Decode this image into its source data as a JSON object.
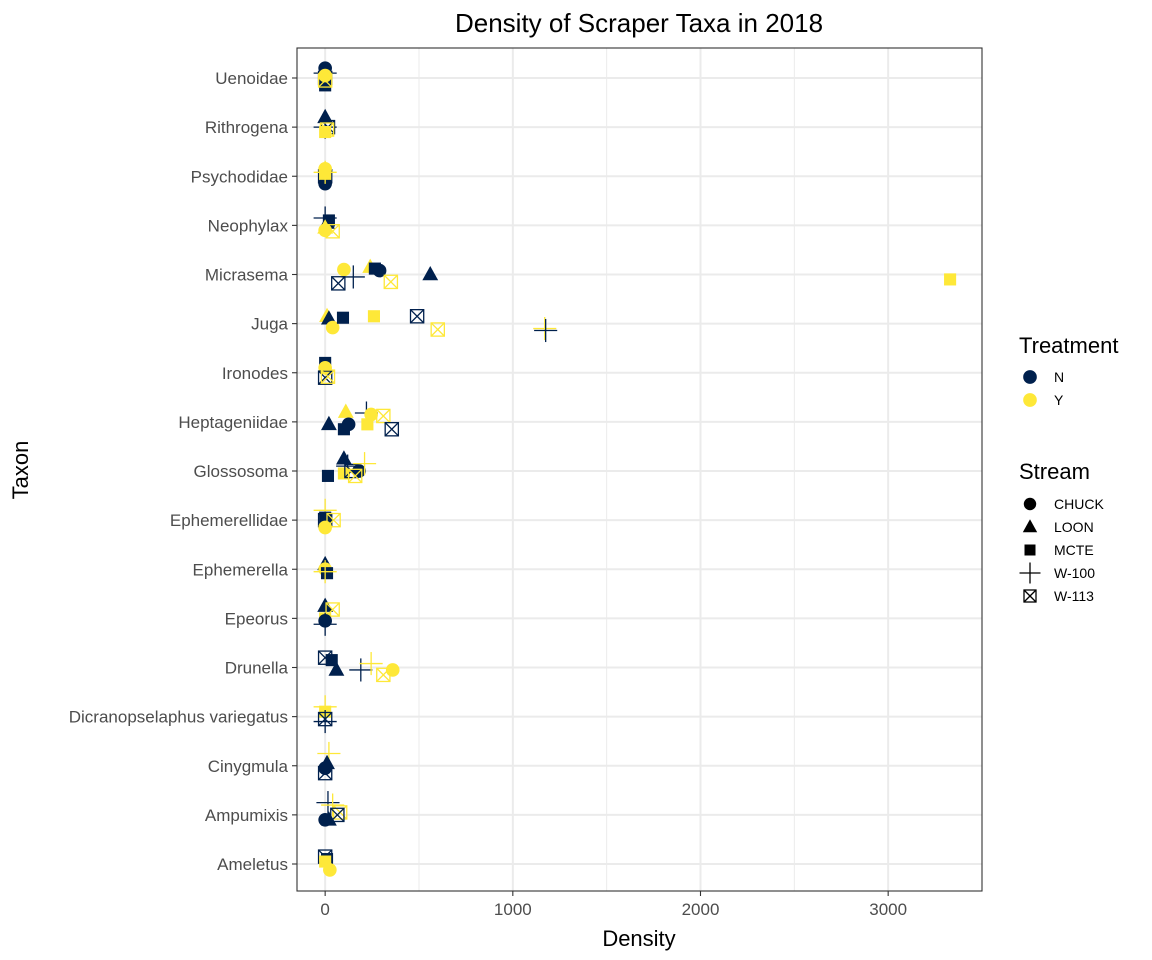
{
  "chart_data": {
    "type": "scatter",
    "title": "Density of Scraper Taxa in 2018",
    "xlabel": "Density",
    "ylabel": "Taxon",
    "xlim": [
      -150,
      3500
    ],
    "xticks": [
      0,
      1000,
      2000,
      3000
    ],
    "xtick_labels": [
      "0",
      "1000",
      "2000",
      "3000"
    ],
    "categories": [
      "Ameletus",
      "Ampumixis",
      "Cinygmula",
      "Dicranopselaphus variegatus",
      "Drunella",
      "Epeorus",
      "Ephemerella",
      "Ephemerellidae",
      "Glossosoma",
      "Heptageniidae",
      "Ironodes",
      "Juga",
      "Micrasema",
      "Neophylax",
      "Psychodidae",
      "Rithrogena",
      "Uenoidae"
    ],
    "grid": true,
    "legend_position": "right",
    "colors": {
      "N": "#00204d",
      "Y": "#fee838",
      "cross_over_fill": "#ffffff"
    },
    "legends": [
      {
        "title": "Treatment",
        "kind": "color",
        "entries": [
          {
            "label": "N",
            "color": "#00204d"
          },
          {
            "label": "Y",
            "color": "#fee838"
          }
        ]
      },
      {
        "title": "Stream",
        "kind": "shape",
        "entries": [
          {
            "label": "CHUCK",
            "shape": "circle"
          },
          {
            "label": "LOON",
            "shape": "triangle"
          },
          {
            "label": "MCTE",
            "shape": "square"
          },
          {
            "label": "W-100",
            "shape": "plus"
          },
          {
            "label": "W-113",
            "shape": "boxcross"
          }
        ]
      }
    ],
    "points": [
      {
        "taxon": "Uenoidae",
        "x": 0,
        "jitter": 0.2,
        "stream": "CHUCK",
        "treatment": "N"
      },
      {
        "taxon": "Uenoidae",
        "x": 0,
        "jitter": -0.15,
        "stream": "MCTE",
        "treatment": "N"
      },
      {
        "taxon": "Uenoidae",
        "x": 0,
        "jitter": 0.1,
        "stream": "W-100",
        "treatment": "N"
      },
      {
        "taxon": "Uenoidae",
        "x": 0,
        "jitter": 0.0,
        "stream": "W-113",
        "treatment": "N"
      },
      {
        "taxon": "Uenoidae",
        "x": 0,
        "jitter": 0.05,
        "stream": "CHUCK",
        "treatment": "Y"
      },
      {
        "taxon": "Uenoidae",
        "x": 0,
        "jitter": -0.05,
        "stream": "W-113",
        "treatment": "Y"
      },
      {
        "taxon": "Rithrogena",
        "x": 0,
        "jitter": 0.2,
        "stream": "LOON",
        "treatment": "N"
      },
      {
        "taxon": "Rithrogena",
        "x": 0,
        "jitter": 0.0,
        "stream": "W-100",
        "treatment": "N"
      },
      {
        "taxon": "Rithrogena",
        "x": 15,
        "jitter": 0.0,
        "stream": "W-113",
        "treatment": "N"
      },
      {
        "taxon": "Rithrogena",
        "x": 0,
        "jitter": -0.1,
        "stream": "MCTE",
        "treatment": "Y"
      },
      {
        "taxon": "Rithrogena",
        "x": 10,
        "jitter": -0.05,
        "stream": "W-113",
        "treatment": "Y"
      },
      {
        "taxon": "Psychodidae",
        "x": 0,
        "jitter": -0.15,
        "stream": "CHUCK",
        "treatment": "N"
      },
      {
        "taxon": "Psychodidae",
        "x": 0,
        "jitter": 0.0,
        "stream": "W-113",
        "treatment": "N"
      },
      {
        "taxon": "Psychodidae",
        "x": 0,
        "jitter": 0.15,
        "stream": "CHUCK",
        "treatment": "Y"
      },
      {
        "taxon": "Psychodidae",
        "x": 0,
        "jitter": 0.05,
        "stream": "MCTE",
        "treatment": "Y"
      },
      {
        "taxon": "Psychodidae",
        "x": 0,
        "jitter": 0.08,
        "stream": "W-100",
        "treatment": "Y"
      },
      {
        "taxon": "Neophylax",
        "x": 0,
        "jitter": 0.15,
        "stream": "W-100",
        "treatment": "N"
      },
      {
        "taxon": "Neophylax",
        "x": 20,
        "jitter": 0.1,
        "stream": "MCTE",
        "treatment": "N"
      },
      {
        "taxon": "Neophylax",
        "x": 10,
        "jitter": 0.05,
        "stream": "LOON",
        "treatment": "N"
      },
      {
        "taxon": "Neophylax",
        "x": 0,
        "jitter": -0.1,
        "stream": "CHUCK",
        "treatment": "Y"
      },
      {
        "taxon": "Neophylax",
        "x": 0,
        "jitter": -0.05,
        "stream": "LOON",
        "treatment": "Y"
      },
      {
        "taxon": "Neophylax",
        "x": 40,
        "jitter": -0.12,
        "stream": "W-113",
        "treatment": "Y"
      },
      {
        "taxon": "Micrasema",
        "x": 100,
        "jitter": 0.1,
        "stream": "CHUCK",
        "treatment": "Y"
      },
      {
        "taxon": "Micrasema",
        "x": 240,
        "jitter": 0.15,
        "stream": "LOON",
        "treatment": "Y"
      },
      {
        "taxon": "Micrasema",
        "x": 265,
        "jitter": 0.12,
        "stream": "MCTE",
        "treatment": "N"
      },
      {
        "taxon": "Micrasema",
        "x": 290,
        "jitter": 0.08,
        "stream": "CHUCK",
        "treatment": "N"
      },
      {
        "taxon": "Micrasema",
        "x": 560,
        "jitter": 0.0,
        "stream": "LOON",
        "treatment": "N"
      },
      {
        "taxon": "Micrasema",
        "x": 150,
        "jitter": -0.05,
        "stream": "W-100",
        "treatment": "N"
      },
      {
        "taxon": "Micrasema",
        "x": 70,
        "jitter": -0.18,
        "stream": "W-113",
        "treatment": "N"
      },
      {
        "taxon": "Micrasema",
        "x": 350,
        "jitter": -0.15,
        "stream": "W-113",
        "treatment": "Y"
      },
      {
        "taxon": "Micrasema",
        "x": 3330,
        "jitter": -0.1,
        "stream": "MCTE",
        "treatment": "Y"
      },
      {
        "taxon": "Juga",
        "x": 10,
        "jitter": 0.15,
        "stream": "LOON",
        "treatment": "Y"
      },
      {
        "taxon": "Juga",
        "x": 20,
        "jitter": 0.1,
        "stream": "LOON",
        "treatment": "N"
      },
      {
        "taxon": "Juga",
        "x": 40,
        "jitter": -0.08,
        "stream": "CHUCK",
        "treatment": "Y"
      },
      {
        "taxon": "Juga",
        "x": 95,
        "jitter": 0.12,
        "stream": "MCTE",
        "treatment": "N"
      },
      {
        "taxon": "Juga",
        "x": 260,
        "jitter": 0.15,
        "stream": "MCTE",
        "treatment": "Y"
      },
      {
        "taxon": "Juga",
        "x": 490,
        "jitter": 0.15,
        "stream": "W-113",
        "treatment": "N"
      },
      {
        "taxon": "Juga",
        "x": 600,
        "jitter": -0.12,
        "stream": "W-113",
        "treatment": "Y"
      },
      {
        "taxon": "Juga",
        "x": 1170,
        "jitter": -0.1,
        "stream": "W-100",
        "treatment": "Y"
      },
      {
        "taxon": "Juga",
        "x": 1175,
        "jitter": -0.14,
        "stream": "W-100",
        "treatment": "N"
      },
      {
        "taxon": "Ironodes",
        "x": 0,
        "jitter": 0.2,
        "stream": "MCTE",
        "treatment": "N"
      },
      {
        "taxon": "Ironodes",
        "x": 0,
        "jitter": 0.1,
        "stream": "CHUCK",
        "treatment": "Y"
      },
      {
        "taxon": "Ironodes",
        "x": 0,
        "jitter": -0.1,
        "stream": "W-113",
        "treatment": "N"
      },
      {
        "taxon": "Ironodes",
        "x": 15,
        "jitter": -0.08,
        "stream": "W-113",
        "treatment": "Y"
      },
      {
        "taxon": "Heptageniidae",
        "x": 20,
        "jitter": -0.05,
        "stream": "LOON",
        "treatment": "N"
      },
      {
        "taxon": "Heptageniidae",
        "x": 110,
        "jitter": 0.2,
        "stream": "LOON",
        "treatment": "Y"
      },
      {
        "taxon": "Heptageniidae",
        "x": 100,
        "jitter": -0.15,
        "stream": "MCTE",
        "treatment": "N"
      },
      {
        "taxon": "Heptageniidae",
        "x": 125,
        "jitter": -0.05,
        "stream": "CHUCK",
        "treatment": "N"
      },
      {
        "taxon": "Heptageniidae",
        "x": 220,
        "jitter": 0.18,
        "stream": "W-100",
        "treatment": "N"
      },
      {
        "taxon": "Heptageniidae",
        "x": 245,
        "jitter": 0.15,
        "stream": "CHUCK",
        "treatment": "Y"
      },
      {
        "taxon": "Heptageniidae",
        "x": 225,
        "jitter": -0.05,
        "stream": "MCTE",
        "treatment": "Y"
      },
      {
        "taxon": "Heptageniidae",
        "x": 310,
        "jitter": 0.12,
        "stream": "W-113",
        "treatment": "Y"
      },
      {
        "taxon": "Heptageniidae",
        "x": 355,
        "jitter": -0.15,
        "stream": "W-113",
        "treatment": "N"
      },
      {
        "taxon": "Glossosoma",
        "x": 15,
        "jitter": -0.1,
        "stream": "MCTE",
        "treatment": "N"
      },
      {
        "taxon": "Glossosoma",
        "x": 100,
        "jitter": 0.25,
        "stream": "LOON",
        "treatment": "N"
      },
      {
        "taxon": "Glossosoma",
        "x": 120,
        "jitter": 0.1,
        "stream": "W-100",
        "treatment": "N"
      },
      {
        "taxon": "Glossosoma",
        "x": 180,
        "jitter": 0.0,
        "stream": "CHUCK",
        "treatment": "N"
      },
      {
        "taxon": "Glossosoma",
        "x": 100,
        "jitter": -0.05,
        "stream": "MCTE",
        "treatment": "Y"
      },
      {
        "taxon": "Glossosoma",
        "x": 140,
        "jitter": 0.0,
        "stream": "W-113",
        "treatment": "N"
      },
      {
        "taxon": "Glossosoma",
        "x": 160,
        "jitter": -0.1,
        "stream": "W-113",
        "treatment": "Y"
      },
      {
        "taxon": "Glossosoma",
        "x": 210,
        "jitter": 0.15,
        "stream": "W-100",
        "treatment": "Y"
      },
      {
        "taxon": "Ephemerellidae",
        "x": 0,
        "jitter": 0.2,
        "stream": "W-100",
        "treatment": "Y"
      },
      {
        "taxon": "Ephemerellidae",
        "x": 0,
        "jitter": 0.05,
        "stream": "MCTE",
        "treatment": "N"
      },
      {
        "taxon": "Ephemerellidae",
        "x": 0,
        "jitter": 0.0,
        "stream": "W-113",
        "treatment": "N"
      },
      {
        "taxon": "Ephemerellidae",
        "x": 0,
        "jitter": -0.15,
        "stream": "CHUCK",
        "treatment": "Y"
      },
      {
        "taxon": "Ephemerellidae",
        "x": 45,
        "jitter": 0.0,
        "stream": "W-113",
        "treatment": "Y"
      },
      {
        "taxon": "Ephemerella",
        "x": 0,
        "jitter": 0.1,
        "stream": "LOON",
        "treatment": "N"
      },
      {
        "taxon": "Ephemerella",
        "x": 0,
        "jitter": 0.0,
        "stream": "CHUCK",
        "treatment": "Y"
      },
      {
        "taxon": "Ephemerella",
        "x": 10,
        "jitter": -0.08,
        "stream": "MCTE",
        "treatment": "N"
      },
      {
        "taxon": "Ephemerella",
        "x": 0,
        "jitter": -0.05,
        "stream": "W-100",
        "treatment": "Y"
      },
      {
        "taxon": "Epeorus",
        "x": 0,
        "jitter": 0.25,
        "stream": "LOON",
        "treatment": "N"
      },
      {
        "taxon": "Epeorus",
        "x": 0,
        "jitter": 0.0,
        "stream": "MCTE",
        "treatment": "Y"
      },
      {
        "taxon": "Epeorus",
        "x": 40,
        "jitter": 0.18,
        "stream": "W-113",
        "treatment": "Y"
      },
      {
        "taxon": "Epeorus",
        "x": 0,
        "jitter": -0.05,
        "stream": "CHUCK",
        "treatment": "N"
      },
      {
        "taxon": "Epeorus",
        "x": 0,
        "jitter": -0.12,
        "stream": "W-100",
        "treatment": "N"
      },
      {
        "taxon": "Drunella",
        "x": 0,
        "jitter": 0.2,
        "stream": "W-113",
        "treatment": "N"
      },
      {
        "taxon": "Drunella",
        "x": 35,
        "jitter": 0.15,
        "stream": "MCTE",
        "treatment": "N"
      },
      {
        "taxon": "Drunella",
        "x": 60,
        "jitter": -0.05,
        "stream": "LOON",
        "treatment": "N"
      },
      {
        "taxon": "Drunella",
        "x": 190,
        "jitter": -0.05,
        "stream": "W-100",
        "treatment": "N"
      },
      {
        "taxon": "Drunella",
        "x": 245,
        "jitter": 0.08,
        "stream": "W-100",
        "treatment": "Y"
      },
      {
        "taxon": "Drunella",
        "x": 310,
        "jitter": -0.15,
        "stream": "W-113",
        "treatment": "Y"
      },
      {
        "taxon": "Drunella",
        "x": 360,
        "jitter": -0.05,
        "stream": "CHUCK",
        "treatment": "Y"
      },
      {
        "taxon": "Dicranopselaphus variegatus",
        "x": 0,
        "jitter": 0.2,
        "stream": "W-100",
        "treatment": "Y"
      },
      {
        "taxon": "Dicranopselaphus variegatus",
        "x": 0,
        "jitter": 0.1,
        "stream": "MCTE",
        "treatment": "Y"
      },
      {
        "taxon": "Dicranopselaphus variegatus",
        "x": 0,
        "jitter": -0.05,
        "stream": "W-113",
        "treatment": "N"
      },
      {
        "taxon": "Dicranopselaphus variegatus",
        "x": 0,
        "jitter": -0.1,
        "stream": "W-100",
        "treatment": "N"
      },
      {
        "taxon": "Cinygmula",
        "x": 20,
        "jitter": 0.25,
        "stream": "W-100",
        "treatment": "Y"
      },
      {
        "taxon": "Cinygmula",
        "x": 10,
        "jitter": 0.05,
        "stream": "LOON",
        "treatment": "N"
      },
      {
        "taxon": "Cinygmula",
        "x": 0,
        "jitter": -0.05,
        "stream": "CHUCK",
        "treatment": "N"
      },
      {
        "taxon": "Cinygmula",
        "x": 0,
        "jitter": -0.15,
        "stream": "W-113",
        "treatment": "N"
      },
      {
        "taxon": "Ampumixis",
        "x": 15,
        "jitter": 0.25,
        "stream": "W-100",
        "treatment": "N"
      },
      {
        "taxon": "Ampumixis",
        "x": 40,
        "jitter": 0.2,
        "stream": "W-100",
        "treatment": "Y"
      },
      {
        "taxon": "Ampumixis",
        "x": 80,
        "jitter": 0.05,
        "stream": "W-113",
        "treatment": "Y"
      },
      {
        "taxon": "Ampumixis",
        "x": 65,
        "jitter": 0.0,
        "stream": "W-113",
        "treatment": "N"
      },
      {
        "taxon": "Ampumixis",
        "x": 20,
        "jitter": -0.1,
        "stream": "LOON",
        "treatment": "N"
      },
      {
        "taxon": "Ampumixis",
        "x": 0,
        "jitter": -0.1,
        "stream": "CHUCK",
        "treatment": "N"
      },
      {
        "taxon": "Ameletus",
        "x": 0,
        "jitter": 0.15,
        "stream": "W-113",
        "treatment": "N"
      },
      {
        "taxon": "Ameletus",
        "x": 10,
        "jitter": 0.1,
        "stream": "MCTE",
        "treatment": "N"
      },
      {
        "taxon": "Ameletus",
        "x": 0,
        "jitter": 0.05,
        "stream": "MCTE",
        "treatment": "Y"
      },
      {
        "taxon": "Ameletus",
        "x": 25,
        "jitter": -0.12,
        "stream": "CHUCK",
        "treatment": "Y"
      }
    ]
  }
}
